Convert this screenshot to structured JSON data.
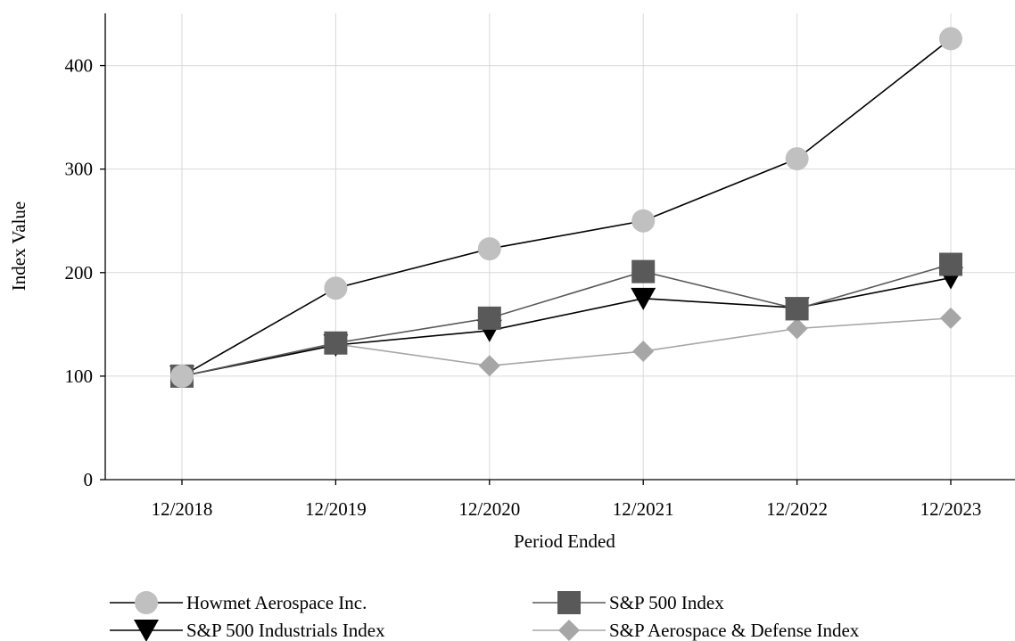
{
  "chart_data": {
    "type": "line",
    "xlabel": "Period Ended",
    "ylabel": "Index Value",
    "categories": [
      "12/2018",
      "12/2019",
      "12/2020",
      "12/2021",
      "12/2022",
      "12/2023"
    ],
    "ylim": [
      0,
      450
    ],
    "yticks": [
      0,
      100,
      200,
      300,
      400
    ],
    "grid": true,
    "legend_position": "bottom",
    "series": [
      {
        "name": "Howmet Aerospace Inc.",
        "marker": "circle",
        "line_color": "#000000",
        "marker_color": "#c0c0c0",
        "values": [
          100,
          185,
          223,
          250,
          310,
          426
        ]
      },
      {
        "name": "S&P 500 Index",
        "marker": "square",
        "line_color": "#595959",
        "marker_color": "#595959",
        "values": [
          100,
          132,
          156,
          201,
          165,
          208
        ]
      },
      {
        "name": "S&P 500 Industrials Index",
        "marker": "triangle-down",
        "line_color": "#000000",
        "marker_color": "#000000",
        "values": [
          100,
          130,
          144,
          175,
          166,
          195
        ]
      },
      {
        "name": "S&P Aerospace & Defense Index",
        "marker": "diamond",
        "line_color": "#a6a6a6",
        "marker_color": "#a6a6a6",
        "values": [
          100,
          131,
          110,
          124,
          146,
          156
        ]
      }
    ]
  }
}
